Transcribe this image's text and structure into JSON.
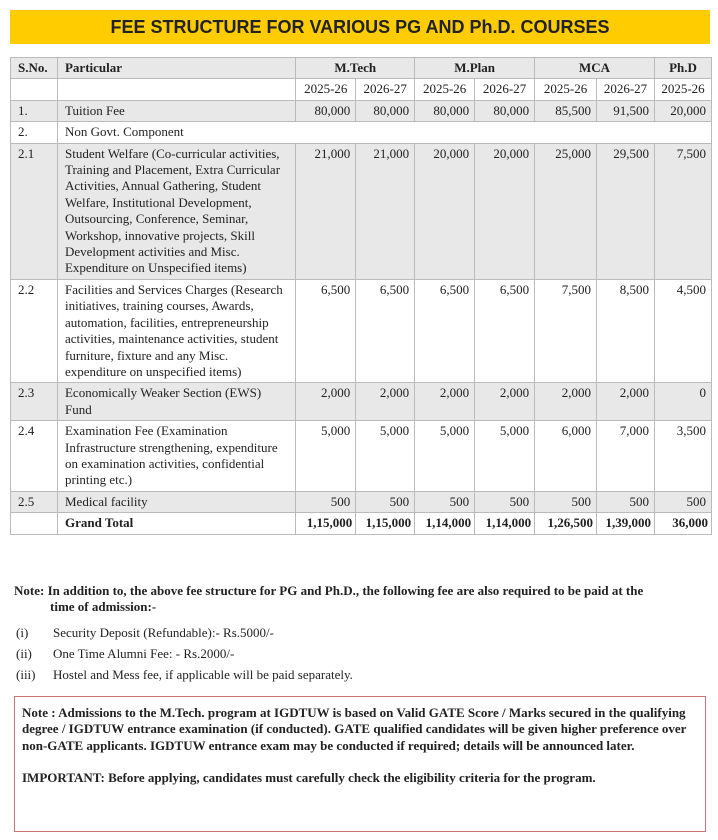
{
  "title": "FEE STRUCTURE FOR VARIOUS PG AND Ph.D. COURSES",
  "table": {
    "headers": {
      "sno": "S.No.",
      "particular": "Particular"
    },
    "programs": [
      {
        "name": "M.Tech",
        "years": [
          "2025-26",
          "2026-27"
        ]
      },
      {
        "name": "M.Plan",
        "years": [
          "2025-26",
          "2026-27"
        ]
      },
      {
        "name": "MCA",
        "years": [
          "2025-26",
          "2026-27"
        ]
      },
      {
        "name": "Ph.D",
        "years": [
          "2025-26"
        ]
      }
    ],
    "rows": [
      {
        "sno": "1.",
        "particular": "Tuition Fee",
        "values": [
          "80,000",
          "80,000",
          "80,000",
          "80,000",
          "85,500",
          "91,500",
          "20,000"
        ]
      },
      {
        "sno": "2.",
        "particular": "Non Govt. Component",
        "values": []
      },
      {
        "sno": "2.1",
        "particular": "Student Welfare (Co-curricular activities, Training and Placement, Extra Curricular Activities, Annual Gathering, Student Welfare, Institutional Development, Outsourcing, Conference, Seminar, Workshop, innovative projects, Skill Development activities and Misc. Expenditure on Unspecified items)",
        "values": [
          "21,000",
          "21,000",
          "20,000",
          "20,000",
          "25,000",
          "29,500",
          "7,500"
        ]
      },
      {
        "sno": "2.2",
        "particular": "Facilities and Services Charges (Research initiatives, training courses, Awards, automation, facilities, entrepreneurship activities, maintenance activities, student furniture, fixture and any Misc. expenditure on unspecified items)",
        "values": [
          "6,500",
          "6,500",
          "6,500",
          "6,500",
          "7,500",
          "8,500",
          "4,500"
        ]
      },
      {
        "sno": "2.3",
        "particular": "Economically Weaker Section (EWS) Fund",
        "values": [
          "2,000",
          "2,000",
          "2,000",
          "2,000",
          "2,000",
          "2,000",
          "0"
        ]
      },
      {
        "sno": "2.4",
        "particular": "Examination Fee (Examination Infrastructure strengthening, expenditure on examination activities, confidential printing etc.)",
        "values": [
          "5,000",
          "5,000",
          "5,000",
          "5,000",
          "6,000",
          "7,000",
          "3,500"
        ]
      },
      {
        "sno": "2.5",
        "particular": "Medical facility",
        "values": [
          "500",
          "500",
          "500",
          "500",
          "500",
          "500",
          "500"
        ]
      }
    ],
    "total": {
      "label": "Grand Total",
      "values": [
        "1,15,000",
        "1,15,000",
        "1,14,000",
        "1,14,000",
        "1,26,500",
        "1,39,000",
        "36,000"
      ]
    }
  },
  "note": {
    "line1": "Note: In addition to, the above fee structure for PG and Ph.D., the following fee are also required to be paid at the",
    "line2": "time of admission:-",
    "items": [
      {
        "marker": "(i)",
        "text": "Security Deposit (Refundable):- Rs.5000/-"
      },
      {
        "marker": "(ii)",
        "text": "One Time Alumni Fee: - Rs.2000/-"
      },
      {
        "marker": "(iii)",
        "text": "Hostel and Mess fee, if applicable will be paid separately."
      }
    ]
  },
  "admission_note": {
    "note": "Note : Admissions to the M.Tech. program at IGDTUW is based on Valid GATE Score / Marks secured in the qualifying degree / IGDTUW entrance examination (if conducted).  GATE qualified candidates will be given higher preference over non-GATE applicants.  IGDTUW entrance exam may be conducted if required; details will be announced later.",
    "important": "IMPORTANT: Before applying, candidates must carefully check the eligibility criteria for the program."
  }
}
